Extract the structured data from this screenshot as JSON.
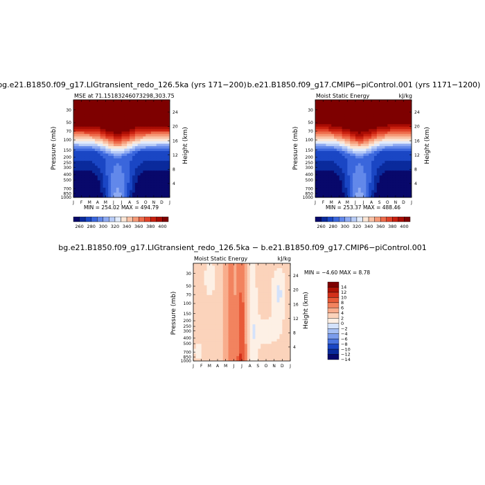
{
  "chart_data": [
    {
      "type": "heatmap",
      "title": "bg.e21.B1850.f09_g17.LIGtransient_redo_126.5ka (yrs 171−200)",
      "subtitle": "MSE at 71.15183246073298,303.75",
      "ylabel": "Pressure (mb)",
      "ylabel_right": "Height (km)",
      "x_ticks": [
        "J",
        "F",
        "M",
        "A",
        "M",
        "J",
        "J",
        "A",
        "S",
        "O",
        "N",
        "D",
        "J"
      ],
      "y_ticks": [
        "30",
        "50",
        "70",
        "100",
        "150",
        "200",
        "250",
        "300",
        "400",
        "500",
        "700",
        "850",
        "1000"
      ],
      "y_ticks_right": [
        "24",
        "20",
        "16",
        "12",
        "8",
        "4"
      ],
      "stats": "MIN = 254.02 MAX = 494.79",
      "colorbar_labels": [
        "260",
        "280",
        "300",
        "320",
        "340",
        "360",
        "380",
        "400"
      ],
      "levels": [
        260,
        270,
        280,
        290,
        300,
        310,
        320,
        330,
        340,
        350,
        360,
        370,
        380,
        390,
        400,
        410
      ]
    },
    {
      "type": "heatmap",
      "title": "b.e21.B1850.f09_g17.CMIP6−piControl.001 (yrs 1171−1200)",
      "subtitle": "Moist Static Energy",
      "units": "kJ/kg",
      "ylabel": "Pressure (mb)",
      "ylabel_right": "Height (km)",
      "x_ticks": [
        "J",
        "F",
        "M",
        "A",
        "M",
        "J",
        "J",
        "A",
        "S",
        "O",
        "N",
        "D",
        "J"
      ],
      "y_ticks": [
        "30",
        "50",
        "70",
        "100",
        "150",
        "200",
        "250",
        "300",
        "400",
        "500",
        "700",
        "850",
        "1000"
      ],
      "y_ticks_right": [
        "24",
        "20",
        "16",
        "12",
        "8",
        "4"
      ],
      "stats": "MIN = 253.37 MAX = 488.46",
      "colorbar_labels": [
        "260",
        "280",
        "300",
        "320",
        "340",
        "360",
        "380",
        "400"
      ],
      "levels": [
        260,
        270,
        280,
        290,
        300,
        310,
        320,
        330,
        340,
        350,
        360,
        370,
        380,
        390,
        400,
        410
      ]
    },
    {
      "type": "heatmap",
      "title": "bg.e21.B1850.f09_g17.LIGtransient_redo_126.5ka − b.e21.B1850.f09_g17.CMIP6−piControl.001",
      "subtitle": "Moist Static Energy",
      "units": "kJ/kg",
      "ylabel": "Pressure (mb)",
      "ylabel_right": "Height (km)",
      "x_ticks": [
        "J",
        "F",
        "M",
        "A",
        "M",
        "J",
        "J",
        "A",
        "S",
        "O",
        "N",
        "D",
        "J"
      ],
      "y_ticks": [
        "30",
        "50",
        "70",
        "100",
        "150",
        "200",
        "250",
        "300",
        "400",
        "500",
        "700",
        "850",
        "1000"
      ],
      "y_ticks_right": [
        "24",
        "20",
        "16",
        "12",
        "8",
        "4"
      ],
      "stats": "MIN =  −4.60 MAX =   8.78",
      "colorbar_labels": [
        "14",
        "12",
        "10",
        "8",
        "6",
        "4",
        "2",
        "0",
        "−2",
        "−4",
        "−6",
        "−8",
        "−10",
        "−12",
        "−14"
      ],
      "levels": [
        -14,
        -12,
        -10,
        -8,
        -6,
        -4,
        -2,
        0,
        2,
        4,
        6,
        8,
        10,
        12,
        14
      ]
    }
  ],
  "palettes": {
    "mse": [
      "#08086b",
      "#0a2a9c",
      "#1a46c4",
      "#3a66dc",
      "#6288ea",
      "#8eaaf2",
      "#b8ccf7",
      "#e2ebfb",
      "#fbe6d6",
      "#f9c2a6",
      "#f59a78",
      "#ee6c4c",
      "#e0432a",
      "#c8200f",
      "#a80c04",
      "#7e0000"
    ],
    "diff": [
      "#08086b",
      "#0a2a9c",
      "#1a46c4",
      "#4a74e0",
      "#7b9cec",
      "#a7c0f4",
      "#d4e2fb",
      "#fdf0e5",
      "#fbd3bb",
      "#f8ad8d",
      "#f2835f",
      "#e85a38",
      "#d2301a",
      "#ad1205",
      "#7e0000"
    ]
  }
}
